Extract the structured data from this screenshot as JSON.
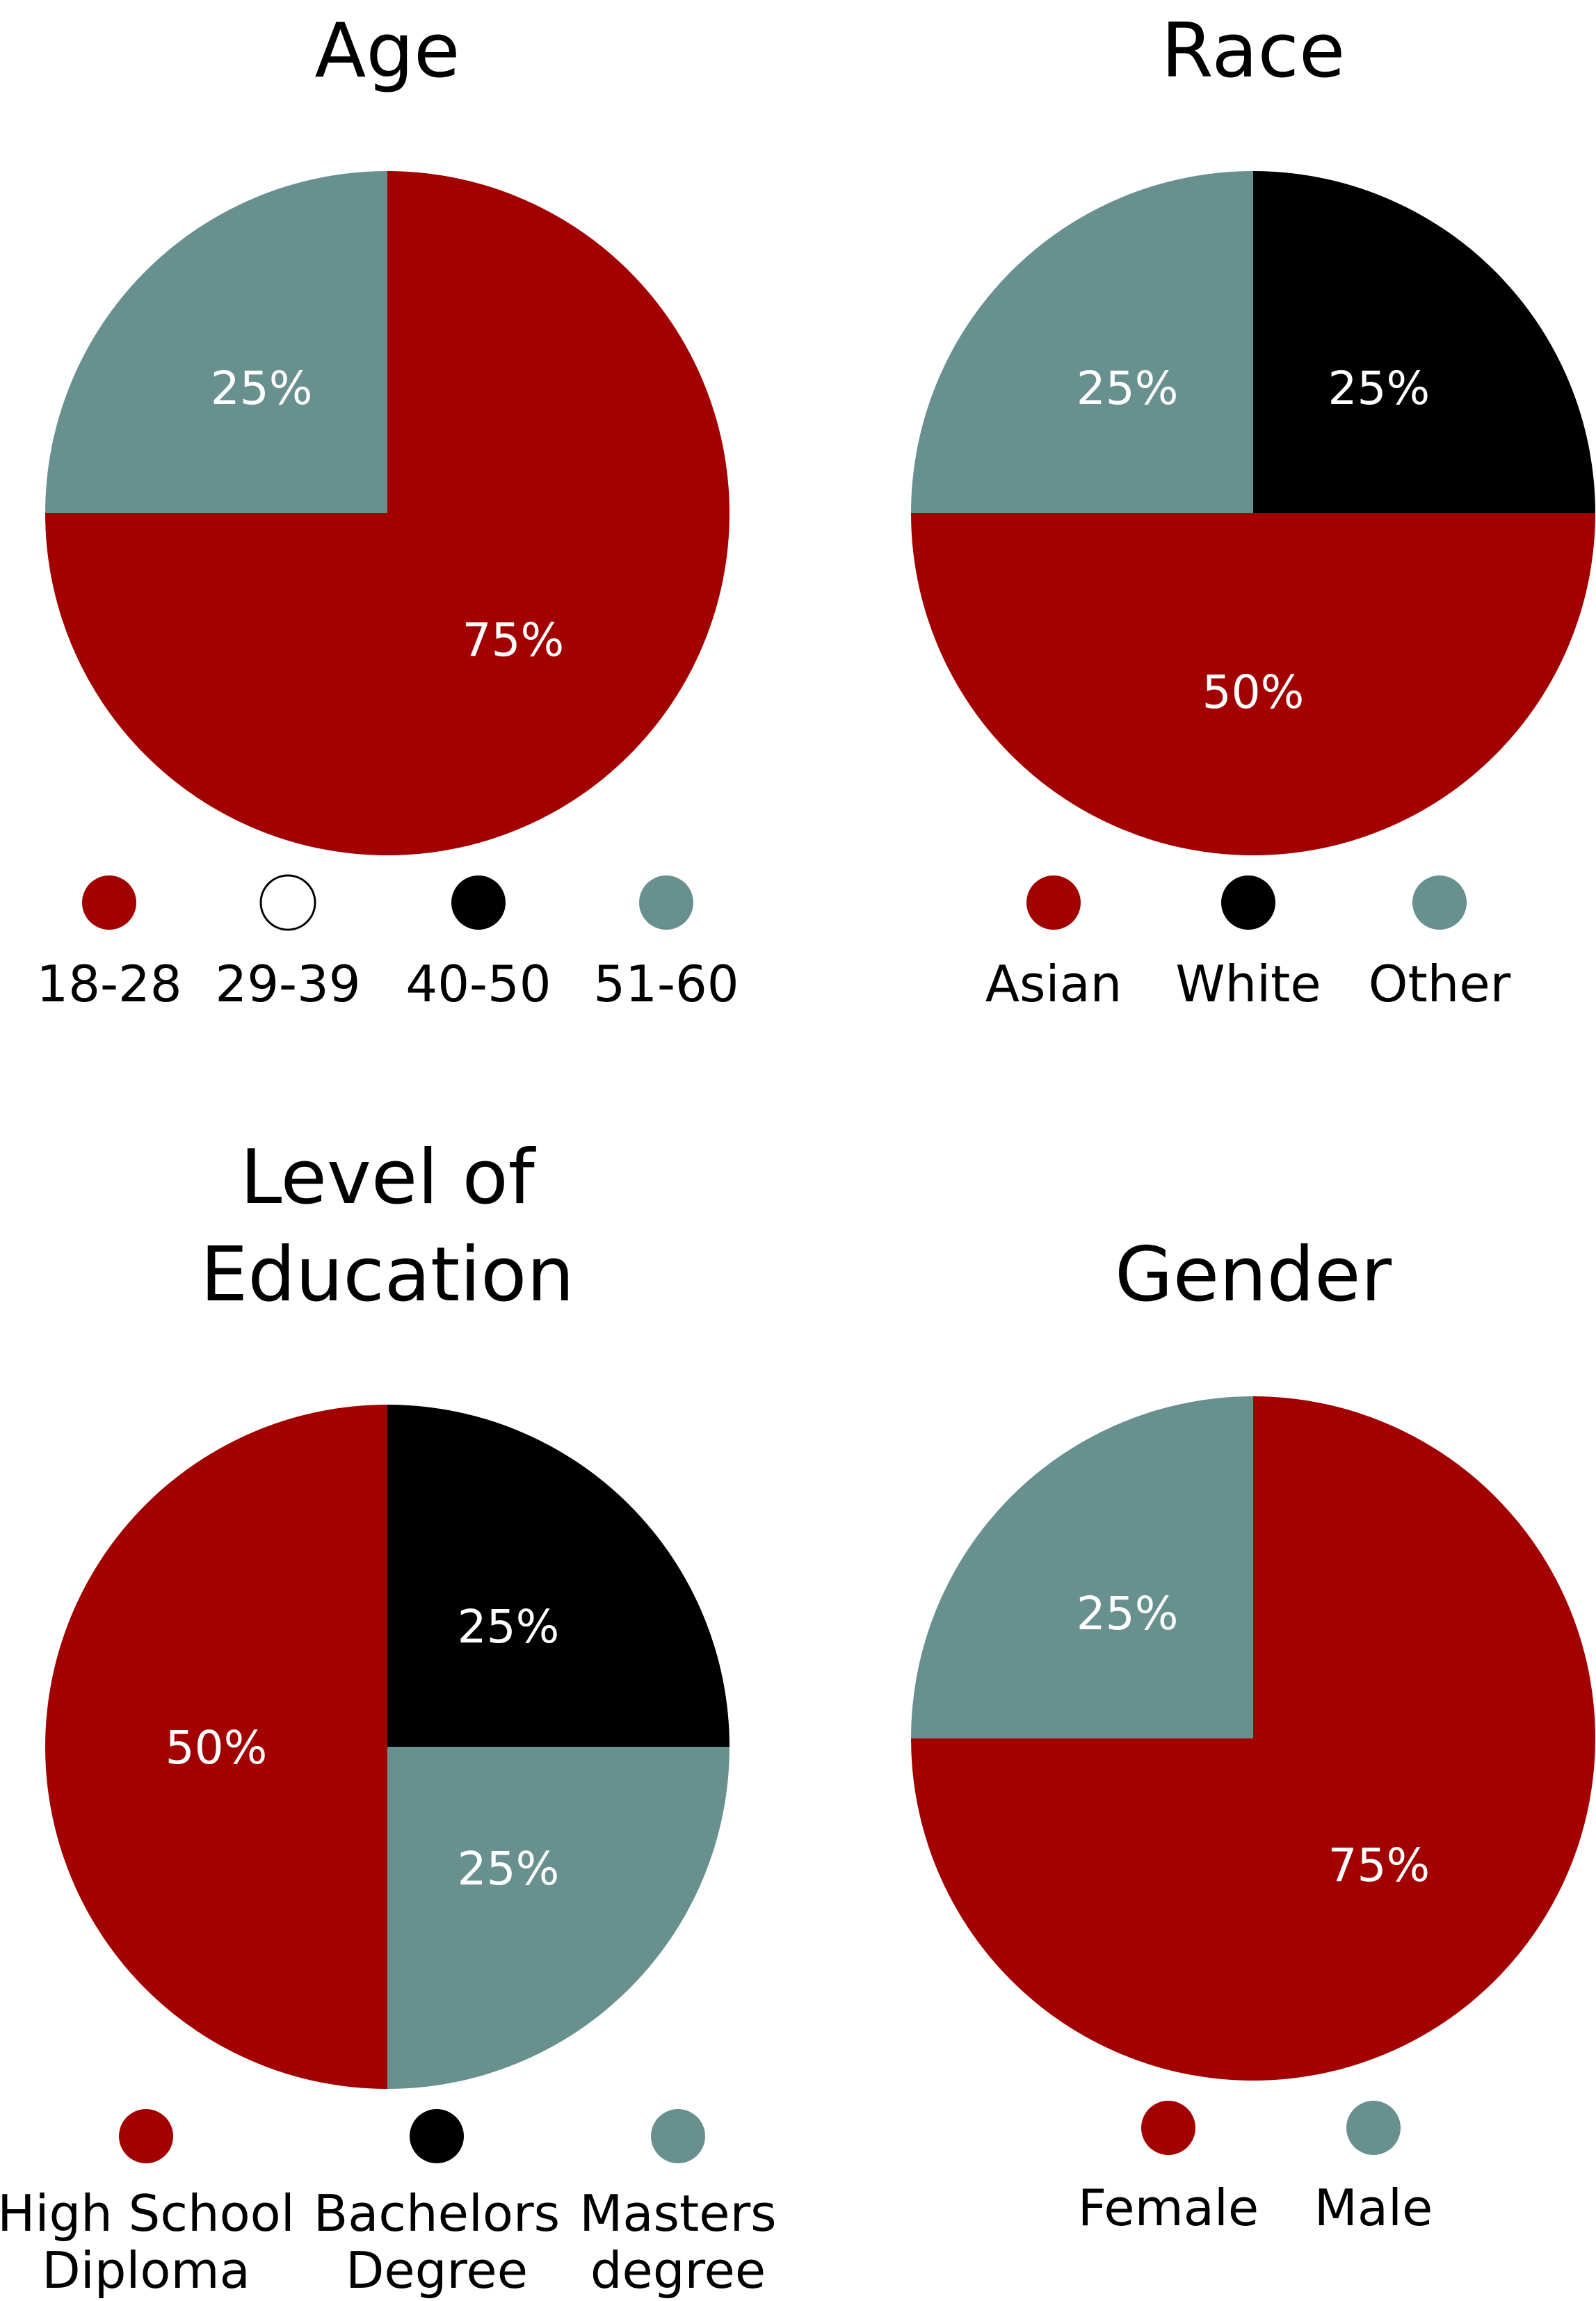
{
  "chart_data": [
    {
      "type": "pie",
      "title": "Age",
      "legend": [
        {
          "label": "18-28",
          "color": "#a30000"
        },
        {
          "label": "29-39",
          "color": "#ffffff"
        },
        {
          "label": "40-50",
          "color": "#000000"
        },
        {
          "label": "51-60",
          "color": "#67908f"
        }
      ],
      "slices": [
        {
          "label": "18-28",
          "value": 75,
          "display": "75%",
          "color": "#a30000"
        },
        {
          "label": "51-60",
          "value": 25,
          "display": "25%",
          "color": "#67908f"
        }
      ]
    },
    {
      "type": "pie",
      "title": "Race",
      "legend": [
        {
          "label": "Asian",
          "color": "#a30000"
        },
        {
          "label": "White",
          "color": "#000000"
        },
        {
          "label": "Other",
          "color": "#67908f"
        }
      ],
      "slices": [
        {
          "label": "White",
          "value": 25,
          "display": "25%",
          "color": "#000000"
        },
        {
          "label": "Asian",
          "value": 50,
          "display": "50%",
          "color": "#a30000"
        },
        {
          "label": "Other",
          "value": 25,
          "display": "25%",
          "color": "#67908f"
        }
      ]
    },
    {
      "type": "pie",
      "title": "Level of Education",
      "title_lines": [
        "Level of",
        "Education"
      ],
      "legend": [
        {
          "label": "High School Diploma",
          "lines": [
            "High School",
            "Diploma"
          ],
          "color": "#a30000"
        },
        {
          "label": "Bachelors Degree",
          "lines": [
            "Bachelors",
            "Degree"
          ],
          "color": "#000000"
        },
        {
          "label": "Masters degree",
          "lines": [
            "Masters",
            "degree"
          ],
          "color": "#67908f"
        }
      ],
      "slices": [
        {
          "label": "Bachelors Degree",
          "value": 25,
          "display": "25%",
          "color": "#000000"
        },
        {
          "label": "Masters degree",
          "value": 25,
          "display": "25%",
          "color": "#67908f"
        },
        {
          "label": "High School Diploma",
          "value": 50,
          "display": "50%",
          "color": "#a30000"
        }
      ]
    },
    {
      "type": "pie",
      "title": "Gender",
      "legend": [
        {
          "label": "Female",
          "color": "#a30000"
        },
        {
          "label": "Male",
          "color": "#67908f"
        }
      ],
      "slices": [
        {
          "label": "Female",
          "value": 75,
          "display": "75%",
          "color": "#a30000"
        },
        {
          "label": "Male",
          "value": 25,
          "display": "25%",
          "color": "#67908f"
        }
      ]
    }
  ]
}
